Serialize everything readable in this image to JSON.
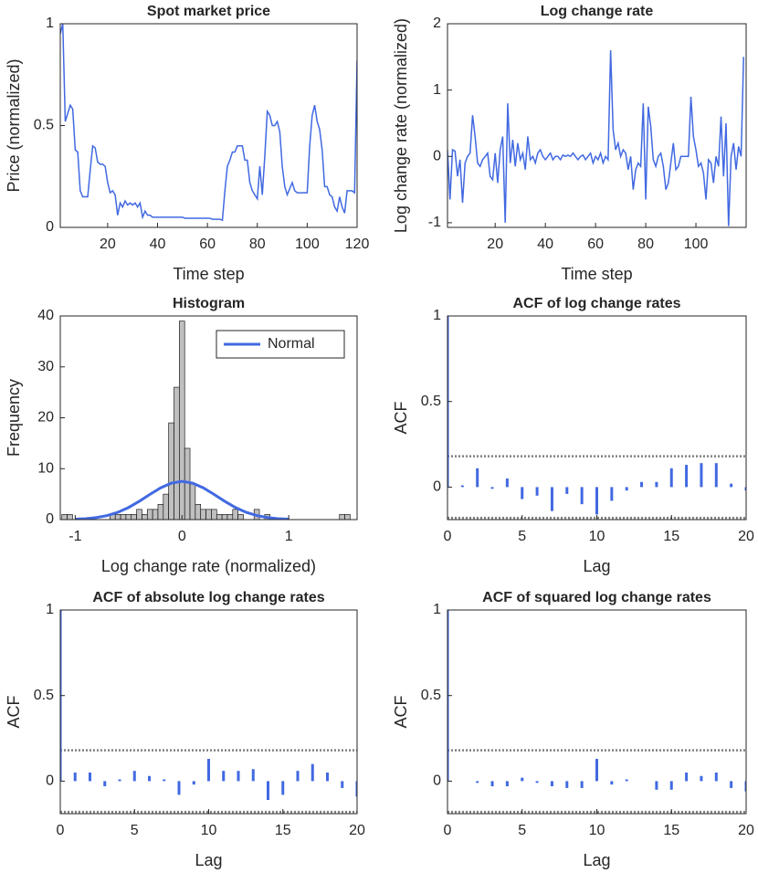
{
  "chart_data": [
    {
      "type": "line",
      "title": "Spot market price",
      "xlabel": "Time step",
      "ylabel": "Price (normalized)",
      "xlim": [
        1,
        120
      ],
      "ylim": [
        0,
        1
      ],
      "xticks": [
        20,
        40,
        60,
        80,
        100,
        120
      ],
      "yticks": [
        0,
        0.5,
        1
      ],
      "series": [
        {
          "color": "#4169e1",
          "x": [
            1,
            2,
            3,
            4,
            5,
            6,
            7,
            8,
            9,
            10,
            11,
            12,
            13,
            14,
            15,
            16,
            17,
            18,
            19,
            20,
            21,
            22,
            23,
            24,
            25,
            26,
            27,
            28,
            29,
            30,
            31,
            32,
            33,
            34,
            35,
            36,
            37,
            38,
            39,
            40,
            41,
            42,
            43,
            44,
            45,
            46,
            47,
            48,
            49,
            50,
            51,
            52,
            53,
            54,
            55,
            56,
            57,
            58,
            59,
            60,
            61,
            62,
            63,
            64,
            65,
            66,
            67,
            68,
            69,
            70,
            71,
            72,
            73,
            74,
            75,
            76,
            77,
            78,
            79,
            80,
            81,
            82,
            83,
            84,
            85,
            86,
            87,
            88,
            89,
            90,
            91,
            92,
            93,
            94,
            95,
            96,
            97,
            98,
            99,
            100,
            101,
            102,
            103,
            104,
            105,
            106,
            107,
            108,
            109,
            110,
            111,
            112,
            113,
            114,
            115,
            116,
            117,
            118,
            119,
            120
          ],
          "values": [
            0.95,
            1.0,
            0.52,
            0.56,
            0.6,
            0.58,
            0.38,
            0.37,
            0.18,
            0.15,
            0.15,
            0.15,
            0.28,
            0.4,
            0.39,
            0.32,
            0.31,
            0.31,
            0.3,
            0.22,
            0.17,
            0.18,
            0.16,
            0.06,
            0.12,
            0.1,
            0.13,
            0.11,
            0.12,
            0.11,
            0.12,
            0.1,
            0.12,
            0.05,
            0.08,
            0.06,
            0.06,
            0.05,
            0.05,
            0.05,
            0.05,
            0.05,
            0.05,
            0.05,
            0.05,
            0.05,
            0.05,
            0.05,
            0.05,
            0.05,
            0.045,
            0.045,
            0.045,
            0.045,
            0.045,
            0.045,
            0.045,
            0.045,
            0.045,
            0.045,
            0.045,
            0.04,
            0.04,
            0.04,
            0.04,
            0.035,
            0.18,
            0.3,
            0.33,
            0.37,
            0.37,
            0.4,
            0.4,
            0.4,
            0.33,
            0.33,
            0.22,
            0.18,
            0.16,
            0.14,
            0.3,
            0.16,
            0.35,
            0.57,
            0.55,
            0.5,
            0.5,
            0.52,
            0.47,
            0.3,
            0.2,
            0.16,
            0.19,
            0.22,
            0.18,
            0.17,
            0.17,
            0.17,
            0.17,
            0.17,
            0.4,
            0.55,
            0.6,
            0.52,
            0.48,
            0.38,
            0.2,
            0.2,
            0.16,
            0.15,
            0.1,
            0.08,
            0.15,
            0.1,
            0.07,
            0.18,
            0.18,
            0.18,
            0.17,
            0.82
          ]
        }
      ]
    },
    {
      "type": "line",
      "title": "Log change rate",
      "xlabel": "Time step",
      "ylabel": "Log change rate (normalized)",
      "xlim": [
        1,
        120
      ],
      "ylim": [
        -1.07,
        2
      ],
      "xticks": [
        20,
        40,
        60,
        80,
        100
      ],
      "yticks": [
        -1,
        0,
        1,
        2
      ],
      "series": [
        {
          "color": "#4169e1",
          "x": [
            1,
            2,
            3,
            4,
            5,
            6,
            7,
            8,
            9,
            10,
            11,
            12,
            13,
            14,
            15,
            16,
            17,
            18,
            19,
            20,
            21,
            22,
            23,
            24,
            25,
            26,
            27,
            28,
            29,
            30,
            31,
            32,
            33,
            34,
            35,
            36,
            37,
            38,
            39,
            40,
            41,
            42,
            43,
            44,
            45,
            46,
            47,
            48,
            49,
            50,
            51,
            52,
            53,
            54,
            55,
            56,
            57,
            58,
            59,
            60,
            61,
            62,
            63,
            64,
            65,
            66,
            67,
            68,
            69,
            70,
            71,
            72,
            73,
            74,
            75,
            76,
            77,
            78,
            79,
            80,
            81,
            82,
            83,
            84,
            85,
            86,
            87,
            88,
            89,
            90,
            91,
            92,
            93,
            94,
            95,
            96,
            97,
            98,
            99,
            100,
            101,
            102,
            103,
            104,
            105,
            106,
            107,
            108,
            109,
            110,
            111,
            112,
            113,
            114,
            115,
            116,
            117,
            118,
            119
          ],
          "values": [
            0.1,
            -0.65,
            0.1,
            0.08,
            -0.3,
            -0.05,
            -0.7,
            -0.1,
            0.0,
            0.05,
            0.62,
            0.3,
            -0.1,
            -0.15,
            -0.05,
            0.0,
            0.05,
            -0.3,
            -0.35,
            0.05,
            -0.4,
            0.1,
            0.3,
            -1.0,
            0.8,
            -0.1,
            0.25,
            -0.15,
            0.2,
            -0.05,
            0.05,
            -0.2,
            0.3,
            -0.05,
            0.0,
            -0.1,
            0.05,
            0.1,
            0.0,
            -0.05,
            0.0,
            0.05,
            -0.05,
            0.0,
            0.0,
            -0.05,
            0.02,
            0.0,
            0.02,
            0.0,
            0.05,
            0.0,
            -0.05,
            0.0,
            0.02,
            -0.05,
            0.0,
            0.05,
            -0.1,
            0.0,
            -0.05,
            0.05,
            -0.1,
            0.0,
            -0.05,
            1.6,
            0.4,
            0.1,
            0.2,
            0.0,
            0.1,
            0.05,
            -0.2,
            0.0,
            -0.5,
            -0.2,
            -0.1,
            -0.15,
            0.8,
            -0.65,
            0.75,
            0.45,
            -0.05,
            -0.15,
            0.0,
            0.05,
            -0.15,
            -0.5,
            -0.4,
            -0.1,
            0.2,
            -0.2,
            -0.15,
            0.0,
            0.0,
            0.0,
            0.0,
            0.9,
            0.3,
            0.1,
            -0.15,
            -0.1,
            -0.25,
            -0.65,
            -0.05,
            -0.1,
            -0.4,
            0.0,
            -0.15,
            0.6,
            -0.3,
            0.5,
            -1.05,
            0.0,
            0.2,
            -0.2,
            0.15,
            0.0,
            1.5
          ]
        }
      ]
    },
    {
      "type": "histogram",
      "title": "Histogram",
      "xlabel": "Log change rate (normalized)",
      "ylabel": "Frequency",
      "xlim": [
        -1.14,
        1.64
      ],
      "ylim": [
        0,
        40
      ],
      "xticks": [
        -1,
        0,
        1
      ],
      "yticks": [
        0,
        10,
        20,
        30,
        40
      ],
      "color": "#bfbfbf",
      "legend": "northeast",
      "bins": [
        -1.125,
        -1.075,
        -1.025,
        -0.975,
        -0.925,
        -0.875,
        -0.825,
        -0.775,
        -0.725,
        -0.675,
        -0.625,
        -0.575,
        -0.525,
        -0.475,
        -0.425,
        -0.375,
        -0.325,
        -0.275,
        -0.225,
        -0.175,
        -0.125,
        -0.075,
        -0.025,
        0.025,
        0.075,
        0.125,
        0.175,
        0.225,
        0.275,
        0.325,
        0.375,
        0.425,
        0.475,
        0.525,
        0.575,
        0.625,
        0.675,
        0.725,
        0.775,
        0.825,
        0.875,
        0.925,
        0.975,
        1.025,
        1.075,
        1.125,
        1.175,
        1.225,
        1.275,
        1.325,
        1.375,
        1.425,
        1.475,
        1.525,
        1.575,
        1.625
      ],
      "values": [
        1,
        1,
        0,
        0,
        0,
        0,
        0,
        0,
        0,
        1,
        1,
        1,
        1,
        1,
        2,
        1,
        2,
        2,
        3,
        5,
        19,
        26,
        39,
        14,
        7,
        3,
        2,
        2,
        2,
        1,
        1,
        1,
        2,
        1,
        0,
        0,
        2,
        0,
        1,
        0,
        0,
        0,
        0,
        0,
        0,
        0,
        0,
        0,
        0,
        0,
        0,
        0,
        1,
        1,
        0
      ],
      "series": [
        {
          "name": "Normal",
          "color": "#4169e1",
          "x": [
            -1,
            -0.9,
            -0.8,
            -0.7,
            -0.6,
            -0.5,
            -0.4,
            -0.3,
            -0.2,
            -0.1,
            0,
            0.1,
            0.2,
            0.3,
            0.4,
            0.5,
            0.6,
            0.7,
            0.8,
            0.9,
            1
          ],
          "values": [
            0.08,
            0.18,
            0.4,
            0.79,
            1.44,
            2.38,
            3.6,
            4.96,
            6.24,
            7.16,
            7.5,
            7.16,
            6.24,
            4.96,
            3.6,
            2.38,
            1.44,
            0.79,
            0.4,
            0.18,
            0.08
          ]
        }
      ]
    },
    {
      "type": "stem",
      "title": "ACF of log change rates",
      "xlabel": "Lag",
      "ylabel": "ACF",
      "xlim": [
        0,
        20
      ],
      "ylim": [
        -0.19,
        1
      ],
      "xticks": [
        0,
        5,
        10,
        15,
        20
      ],
      "yticks": [
        0,
        0.5,
        1
      ],
      "color": "#4169e1",
      "bounds": [
        0.18,
        -0.18
      ],
      "x": [
        0,
        1,
        2,
        3,
        4,
        5,
        6,
        7,
        8,
        9,
        10,
        11,
        12,
        13,
        14,
        15,
        16,
        17,
        18,
        19,
        20
      ],
      "values": [
        1,
        0.01,
        0.11,
        -0.01,
        0.05,
        -0.07,
        -0.05,
        -0.14,
        -0.04,
        -0.1,
        -0.16,
        -0.08,
        -0.02,
        0.03,
        0.03,
        0.11,
        0.13,
        0.14,
        0.14,
        0.02,
        -0.02
      ]
    },
    {
      "type": "stem",
      "title": "ACF of absolute log change rates",
      "xlabel": "Lag",
      "ylabel": "ACF",
      "xlim": [
        0,
        20
      ],
      "ylim": [
        -0.19,
        1
      ],
      "xticks": [
        0,
        5,
        10,
        15,
        20
      ],
      "yticks": [
        0,
        0.5,
        1
      ],
      "color": "#4169e1",
      "bounds": [
        0.18,
        -0.18
      ],
      "x": [
        0,
        1,
        2,
        3,
        4,
        5,
        6,
        7,
        8,
        9,
        10,
        11,
        12,
        13,
        14,
        15,
        16,
        17,
        18,
        19,
        20
      ],
      "values": [
        1,
        0.05,
        0.05,
        -0.03,
        0.01,
        0.06,
        0.03,
        0.01,
        -0.08,
        -0.02,
        0.13,
        0.06,
        0.06,
        0.07,
        -0.11,
        -0.08,
        0.06,
        0.1,
        0.05,
        -0.04,
        -0.09
      ]
    },
    {
      "type": "stem",
      "title": "ACF of squared log change rates",
      "xlabel": "Lag",
      "ylabel": "ACF",
      "xlim": [
        0,
        20
      ],
      "ylim": [
        -0.19,
        1
      ],
      "xticks": [
        0,
        5,
        10,
        15,
        20
      ],
      "yticks": [
        0,
        0.5,
        1
      ],
      "color": "#4169e1",
      "bounds": [
        0.18,
        -0.18
      ],
      "x": [
        0,
        1,
        2,
        3,
        4,
        5,
        6,
        7,
        8,
        9,
        10,
        11,
        12,
        13,
        14,
        15,
        16,
        17,
        18,
        19,
        20
      ],
      "values": [
        1,
        0.0,
        -0.01,
        -0.03,
        -0.03,
        0.02,
        -0.01,
        -0.03,
        -0.04,
        -0.04,
        0.13,
        -0.02,
        0.01,
        0,
        -0.05,
        -0.05,
        0.05,
        0.03,
        0.05,
        -0.04,
        -0.06
      ]
    }
  ]
}
